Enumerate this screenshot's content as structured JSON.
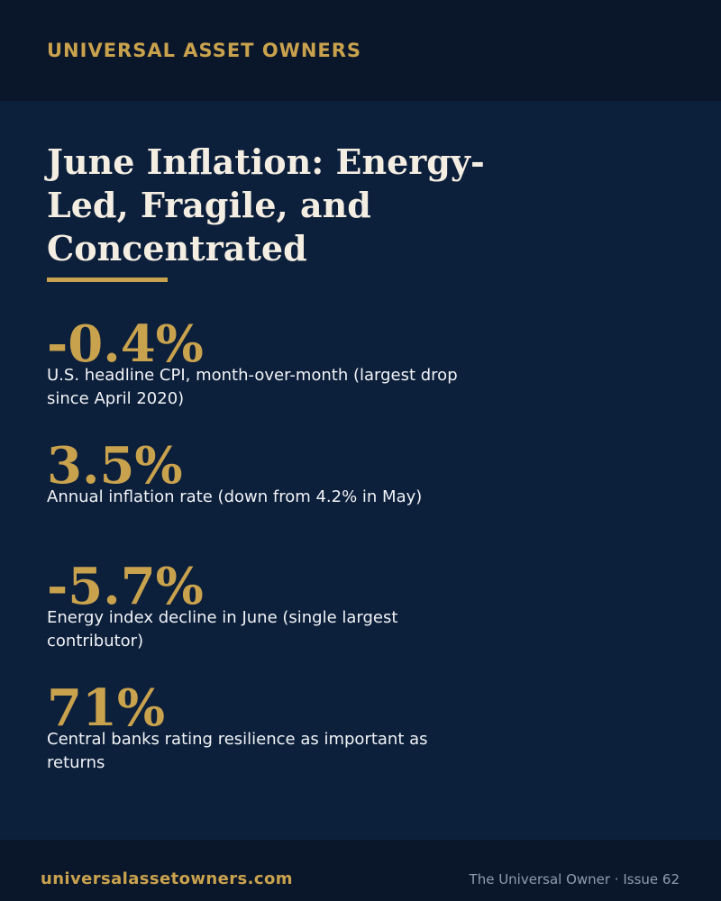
{
  "header": {
    "brand": "UNIVERSAL ASSET OWNERS"
  },
  "title": "June Inflation: Energy-Led, Fragile, and Concentrated",
  "stats": [
    {
      "value": "-0.4%",
      "label": "U.S. headline CPI, month-over-month (largest drop since April 2020)"
    },
    {
      "value": "3.5%",
      "label": "Annual inflation rate (down from 4.2% in May)"
    },
    {
      "value": "-5.7%",
      "label": "Energy index decline in June (single largest contributor)"
    },
    {
      "value": "71%",
      "label": "Central banks rating resilience as important as returns"
    }
  ],
  "footer": {
    "url": "universalassetowners.com",
    "issue": "The Universal Owner · Issue 62"
  },
  "colors": {
    "accent": "#c9a24e",
    "background": "#0c1f3b",
    "band": "#0a1629"
  }
}
